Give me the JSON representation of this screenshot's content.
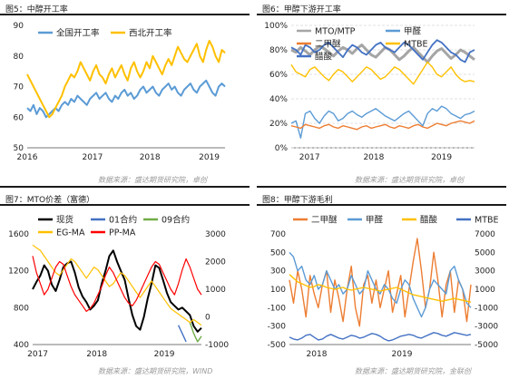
{
  "colors": {
    "blue": "#5b9bd5",
    "orange": "#ed7d31",
    "yellow": "#ffc000",
    "gray": "#a5a5a5",
    "dark_blue": "#4472c4",
    "green": "#70ad47",
    "red": "#ff0000",
    "black": "#000000"
  },
  "panels": [
    {
      "title": "图5：中醇开工率",
      "source": "数据来源：盛达期货研究院，卓创"
    },
    {
      "title": "图6：甲醇下游开工率",
      "source": "数据来源：盛达期货研究院，卓创"
    },
    {
      "title": "图7：MTO价差（富德）",
      "source": "数据来源：盛达期货研究院，WIND"
    },
    {
      "title": "图8：甲醇下游毛利",
      "source": "数据来源：盛达期货研究院，金联创"
    }
  ],
  "chart_data": [
    {
      "type": "line",
      "title": "",
      "x_tick_labels": [
        "2016",
        "2017",
        "2018",
        "2019"
      ],
      "y_tick_labels": [
        "50",
        "60",
        "70",
        "80",
        "90"
      ],
      "ylim": [
        50,
        90
      ],
      "legend": [
        "全国开工率",
        "西北开工率"
      ],
      "series": [
        {
          "name": "全国开工率",
          "color": "#5b9bd5",
          "values": [
            63,
            62,
            64,
            61,
            63,
            62,
            60,
            61,
            62,
            63,
            62,
            64,
            65,
            64,
            66,
            65,
            67,
            66,
            65,
            64,
            66,
            67,
            68,
            66,
            67,
            68,
            66,
            65,
            67,
            66,
            68,
            69,
            67,
            68,
            66,
            67,
            69,
            70,
            68,
            69,
            70,
            68,
            67,
            69,
            70,
            71,
            69,
            70,
            68,
            67,
            69,
            70,
            71,
            69,
            68,
            70,
            71,
            72,
            70,
            68,
            67,
            70,
            71,
            70
          ]
        },
        {
          "name": "西北开工率",
          "color": "#ffc000",
          "values": [
            74,
            72,
            70,
            68,
            66,
            64,
            62,
            60,
            61,
            63,
            65,
            67,
            70,
            72,
            74,
            73,
            75,
            78,
            76,
            74,
            72,
            75,
            77,
            74,
            73,
            71,
            74,
            76,
            73,
            75,
            77,
            74,
            72,
            76,
            78,
            75,
            73,
            75,
            78,
            76,
            80,
            78,
            76,
            74,
            77,
            79,
            77,
            80,
            83,
            81,
            79,
            78,
            80,
            82,
            84,
            80,
            78,
            82,
            85,
            83,
            80,
            78,
            82,
            81
          ]
        }
      ]
    },
    {
      "type": "line",
      "title": "",
      "x_tick_labels": [
        "2017",
        "2018",
        "2019"
      ],
      "y_tick_labels": [
        "0%",
        "20%",
        "40%",
        "60%",
        "80%",
        "100%"
      ],
      "ylim": [
        0,
        100
      ],
      "legend": [
        "MTO/MTP",
        "甲醛",
        "二甲醚",
        "MTBE",
        "醋酸"
      ],
      "series": [
        {
          "name": "MTO/MTP",
          "color": "#a5a5a5",
          "values": [
            80,
            78,
            82,
            79,
            76,
            80,
            83,
            81,
            78,
            75,
            79,
            82,
            80,
            77,
            81,
            84,
            80,
            76,
            74,
            78,
            82,
            80,
            76,
            72,
            75,
            79,
            82,
            78,
            74,
            70,
            75,
            79,
            81,
            77,
            73,
            76,
            80,
            78,
            75,
            72
          ]
        },
        {
          "name": "甲醛",
          "color": "#5b9bd5",
          "values": [
            20,
            22,
            8,
            28,
            30,
            24,
            20,
            26,
            30,
            28,
            22,
            24,
            28,
            30,
            27,
            25,
            28,
            30,
            32,
            29,
            26,
            24,
            22,
            25,
            28,
            30,
            26,
            22,
            18,
            28,
            32,
            30,
            34,
            32,
            28,
            26,
            24,
            27,
            28,
            30
          ]
        },
        {
          "name": "二甲醚",
          "color": "#ed7d31",
          "values": [
            18,
            17,
            16,
            19,
            18,
            17,
            16,
            18,
            19,
            17,
            16,
            18,
            17,
            16,
            15,
            17,
            18,
            16,
            17,
            18,
            19,
            17,
            16,
            18,
            17,
            16,
            18,
            19,
            17,
            16,
            18,
            20,
            19,
            18,
            20,
            21,
            22,
            21,
            20,
            22
          ]
        },
        {
          "name": "MTBE",
          "color": "#ffc000",
          "values": [
            68,
            62,
            60,
            58,
            64,
            66,
            62,
            58,
            55,
            60,
            64,
            62,
            58,
            54,
            58,
            62,
            66,
            64,
            60,
            56,
            58,
            62,
            66,
            64,
            60,
            56,
            52,
            58,
            64,
            70,
            66,
            60,
            58,
            62,
            66,
            60,
            56,
            54,
            55,
            54
          ]
        },
        {
          "name": "醋酸",
          "color": "#4472c4",
          "values": [
            82,
            80,
            76,
            84,
            82,
            78,
            80,
            84,
            86,
            82,
            78,
            74,
            80,
            84,
            82,
            78,
            76,
            80,
            84,
            86,
            82,
            80,
            78,
            82,
            86,
            84,
            80,
            76,
            72,
            78,
            84,
            88,
            86,
            82,
            78,
            76,
            72,
            70,
            78,
            80
          ]
        }
      ]
    },
    {
      "type": "line",
      "title": "",
      "x_tick_labels": [
        "2017",
        "2018",
        "2019"
      ],
      "y_tick_labels": [
        "400",
        "800",
        "1200",
        "1600"
      ],
      "y2_tick_labels": [
        "-1000",
        "0",
        "1000",
        "2000",
        "3000"
      ],
      "ylim": [
        400,
        1600
      ],
      "y2lim": [
        -1000,
        3000
      ],
      "legend": [
        "现货",
        "01合约",
        "09合约",
        "EG-MA",
        "PP-MA"
      ],
      "series": [
        {
          "name": "现货",
          "color": "#000000",
          "axis": "left",
          "values": [
            1000,
            1080,
            1150,
            1260,
            1200,
            1050,
            980,
            1100,
            1240,
            1280,
            1300,
            1180,
            1020,
            920,
            860,
            780,
            820,
            880,
            1060,
            1200,
            1360,
            1420,
            1300,
            1200,
            1100,
            900,
            720,
            600,
            560,
            700,
            900,
            1060,
            1260,
            1230,
            1100,
            960,
            860,
            820,
            780,
            800,
            760,
            720,
            600,
            540,
            580
          ]
        },
        {
          "name": "01合约",
          "color": "#4472c4",
          "axis": "right",
          "values": [
            null,
            null,
            null,
            null,
            null,
            null,
            null,
            null,
            null,
            null,
            null,
            null,
            null,
            null,
            null,
            null,
            null,
            null,
            null,
            null,
            null,
            null,
            null,
            null,
            null,
            null,
            null,
            null,
            null,
            null,
            null,
            null,
            null,
            null,
            null,
            null,
            null,
            null,
            -300,
            -600,
            -900,
            null,
            null,
            null,
            null
          ]
        },
        {
          "name": "09合约",
          "color": "#70ad47",
          "axis": "right",
          "values": [
            null,
            null,
            null,
            null,
            null,
            null,
            null,
            null,
            null,
            null,
            null,
            null,
            null,
            null,
            null,
            null,
            null,
            null,
            null,
            null,
            null,
            null,
            null,
            null,
            null,
            null,
            null,
            null,
            null,
            null,
            null,
            null,
            null,
            null,
            null,
            null,
            null,
            null,
            null,
            null,
            null,
            -200,
            -600,
            -900,
            -700
          ]
        },
        {
          "name": "EG-MA",
          "color": "#ffc000",
          "axis": "right",
          "values": [
            2600,
            2500,
            2400,
            2200,
            2000,
            1800,
            1600,
            1500,
            1700,
            1900,
            2100,
            2000,
            1800,
            1600,
            1400,
            1600,
            1800,
            1700,
            1500,
            1300,
            1100,
            1200,
            1400,
            1600,
            1500,
            1300,
            1100,
            900,
            700,
            900,
            1100,
            1300,
            1100,
            900,
            700,
            500,
            300,
            200,
            100,
            0,
            -100,
            -200,
            -100,
            -200,
            -300
          ]
        },
        {
          "name": "PP-MA",
          "color": "#ff0000",
          "axis": "right",
          "values": [
            2200,
            1600,
            1200,
            800,
            1000,
            1400,
            1800,
            2000,
            1900,
            1500,
            1100,
            800,
            600,
            400,
            200,
            300,
            500,
            800,
            1100,
            1500,
            1800,
            1600,
            1300,
            1000,
            700,
            500,
            400,
            600,
            900,
            1200,
            1500,
            1800,
            2000,
            1900,
            1600,
            1300,
            1000,
            800,
            1200,
            1700,
            2100,
            1800,
            1400,
            1000,
            800
          ]
        }
      ]
    },
    {
      "type": "line",
      "title": "",
      "x_tick_labels": [
        "2018",
        "2019"
      ],
      "y_tick_labels": [
        "-500",
        "-300",
        "-100",
        "100",
        "300",
        "500",
        "700"
      ],
      "y2_tick_labels": [
        "-5000",
        "-3000",
        "-1000",
        "1000",
        "3000",
        "5000",
        "7000"
      ],
      "ylim": [
        -500,
        700
      ],
      "y2lim": [
        -5000,
        7000
      ],
      "legend": [
        "二甲醚",
        "甲醛",
        "醋酸",
        "MTBE"
      ],
      "series": [
        {
          "name": "二甲醚",
          "color": "#ed7d31",
          "axis": "left",
          "values": [
            200,
            -50,
            300,
            100,
            -200,
            250,
            50,
            -100,
            150,
            300,
            -150,
            200,
            0,
            -250,
            100,
            350,
            -100,
            -300,
            150,
            250,
            -50,
            200,
            -100,
            100,
            300,
            -150,
            50,
            250,
            -200,
            100,
            400,
            650,
            300,
            -100,
            100,
            500,
            200,
            -200,
            150,
            300,
            -150,
            200,
            100,
            -250,
            150
          ]
        },
        {
          "name": "甲醛",
          "color": "#5b9bd5",
          "axis": "left",
          "values": [
            500,
            450,
            300,
            350,
            200,
            150,
            250,
            100,
            150,
            300,
            200,
            100,
            150,
            50,
            100,
            250,
            150,
            50,
            100,
            300,
            200,
            100,
            50,
            150,
            100,
            0,
            -50,
            100,
            200,
            150,
            0,
            -100,
            -200,
            -100,
            100,
            200,
            150,
            100,
            50,
            300,
            350,
            200,
            100,
            -50,
            -100
          ]
        },
        {
          "name": "醋酸",
          "color": "#ffc000",
          "axis": "right",
          "values": [
            2600,
            2200,
            1800,
            1600,
            1400,
            1200,
            1300,
            1500,
            1400,
            1200,
            1100,
            1000,
            1100,
            1200,
            1000,
            900,
            1000,
            1100,
            1200,
            1100,
            1000,
            900,
            800,
            900,
            1000,
            1100,
            1200,
            1000,
            800,
            600,
            400,
            300,
            200,
            100,
            0,
            -100,
            -200,
            -300,
            -200,
            -100,
            0,
            -100,
            -200,
            -300,
            -400
          ]
        },
        {
          "name": "MTBE",
          "color": "#4472c4",
          "axis": "right",
          "values": [
            -4200,
            -4400,
            -4500,
            -4300,
            -4000,
            -3900,
            -4200,
            -4500,
            -4400,
            -4100,
            -3900,
            -4100,
            -4300,
            -4400,
            -4200,
            -4000,
            -4100,
            -4300,
            -4200,
            -4000,
            -3800,
            -3900,
            -4100,
            -4400,
            -4600,
            -4500,
            -4300,
            -4100,
            -4000,
            -3900,
            -4000,
            -4200,
            -4300,
            -4100,
            -3900,
            -3700,
            -3800,
            -4000,
            -4100,
            -3900,
            -3700,
            -3800,
            -3900,
            -4000,
            -3900
          ]
        }
      ]
    }
  ]
}
